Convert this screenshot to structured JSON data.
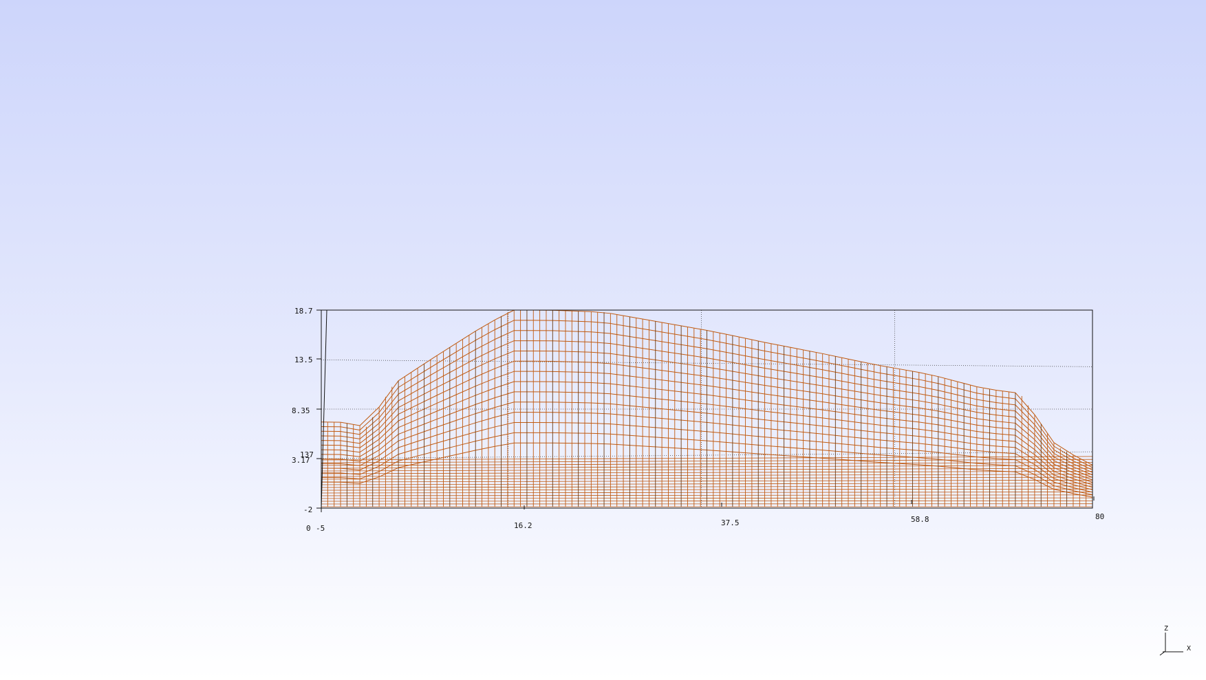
{
  "chart_data": {
    "type": "3d-wireframe",
    "mesh_color": "#c05a10",
    "background_top": "#cdd5fb",
    "background_bottom": "#ffffff",
    "grid": true,
    "xlim": [
      -5,
      80
    ],
    "zlim": [
      -2,
      18.7
    ],
    "ylim": [
      0,
      137
    ],
    "x_ticks": [
      "-5",
      "16.2",
      "37.5",
      "58.8",
      "80"
    ],
    "z_ticks": [
      "-2",
      "3.17",
      "8.35",
      "13.5",
      "18.7"
    ],
    "y_ticks": [
      "0",
      "137"
    ],
    "profile": {
      "x": [
        -5,
        -3,
        0,
        3,
        7,
        12,
        16,
        20,
        26,
        32,
        38,
        44,
        50,
        56,
        62,
        68,
        72,
        76,
        80
      ],
      "z": [
        7,
        7,
        6.5,
        11,
        13.5,
        16.5,
        18.7,
        18.7,
        18.5,
        17.5,
        16.5,
        15.3,
        14.2,
        13,
        12,
        10.5,
        10,
        4.5,
        2.5
      ]
    }
  },
  "orientation_triad": {
    "z_label": "Z",
    "x_label": "X"
  }
}
